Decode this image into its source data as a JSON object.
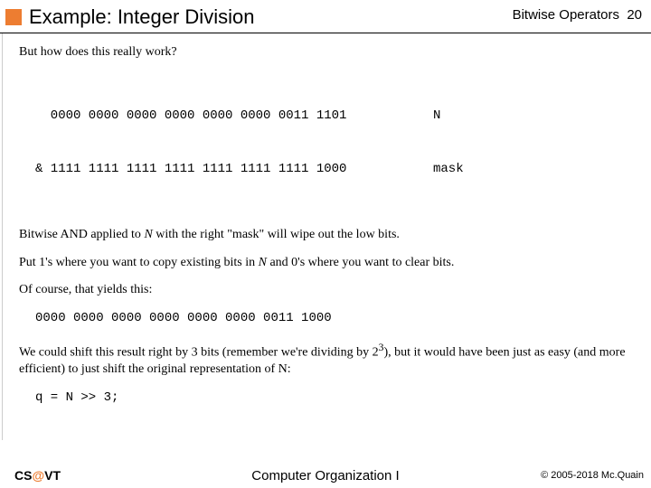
{
  "header": {
    "title": "Example: Integer Division",
    "section": "Bitwise Operators",
    "page": "20"
  },
  "p1": "But how does this really work?",
  "code1": {
    "l1_bits": "  0000 0000 0000 0000 0000 0000 0011 1101",
    "l1_label": "N",
    "l2_bits": "& 1111 1111 1111 1111 1111 1111 1111 1000",
    "l2_label": "mask"
  },
  "p2a": "Bitwise AND applied to ",
  "p2b": "N",
  "p2c": " with the right \"mask\" will wipe out the low bits.",
  "p3a": "Put 1's where you want to copy existing bits in ",
  "p3b": "N",
  "p3c": " and 0's where you want to clear bits.",
  "p4": "Of course, that yields this:",
  "code2": "0000 0000 0000 0000 0000 0000 0011 1000",
  "p5a": "We could shift this result right by 3 bits (remember we're dividing by 2",
  "p5sup": "3",
  "p5b": "), but it would have been just as easy (and more efficient) to just shift the original representation of N:",
  "code3": "q = N >> 3;",
  "footer": {
    "left_a": "CS",
    "left_at": "@",
    "left_b": "VT",
    "center": "Computer Organization I",
    "right": "© 2005-2018 Mc.Quain"
  },
  "colors": {
    "accent": "#ed7d31"
  }
}
